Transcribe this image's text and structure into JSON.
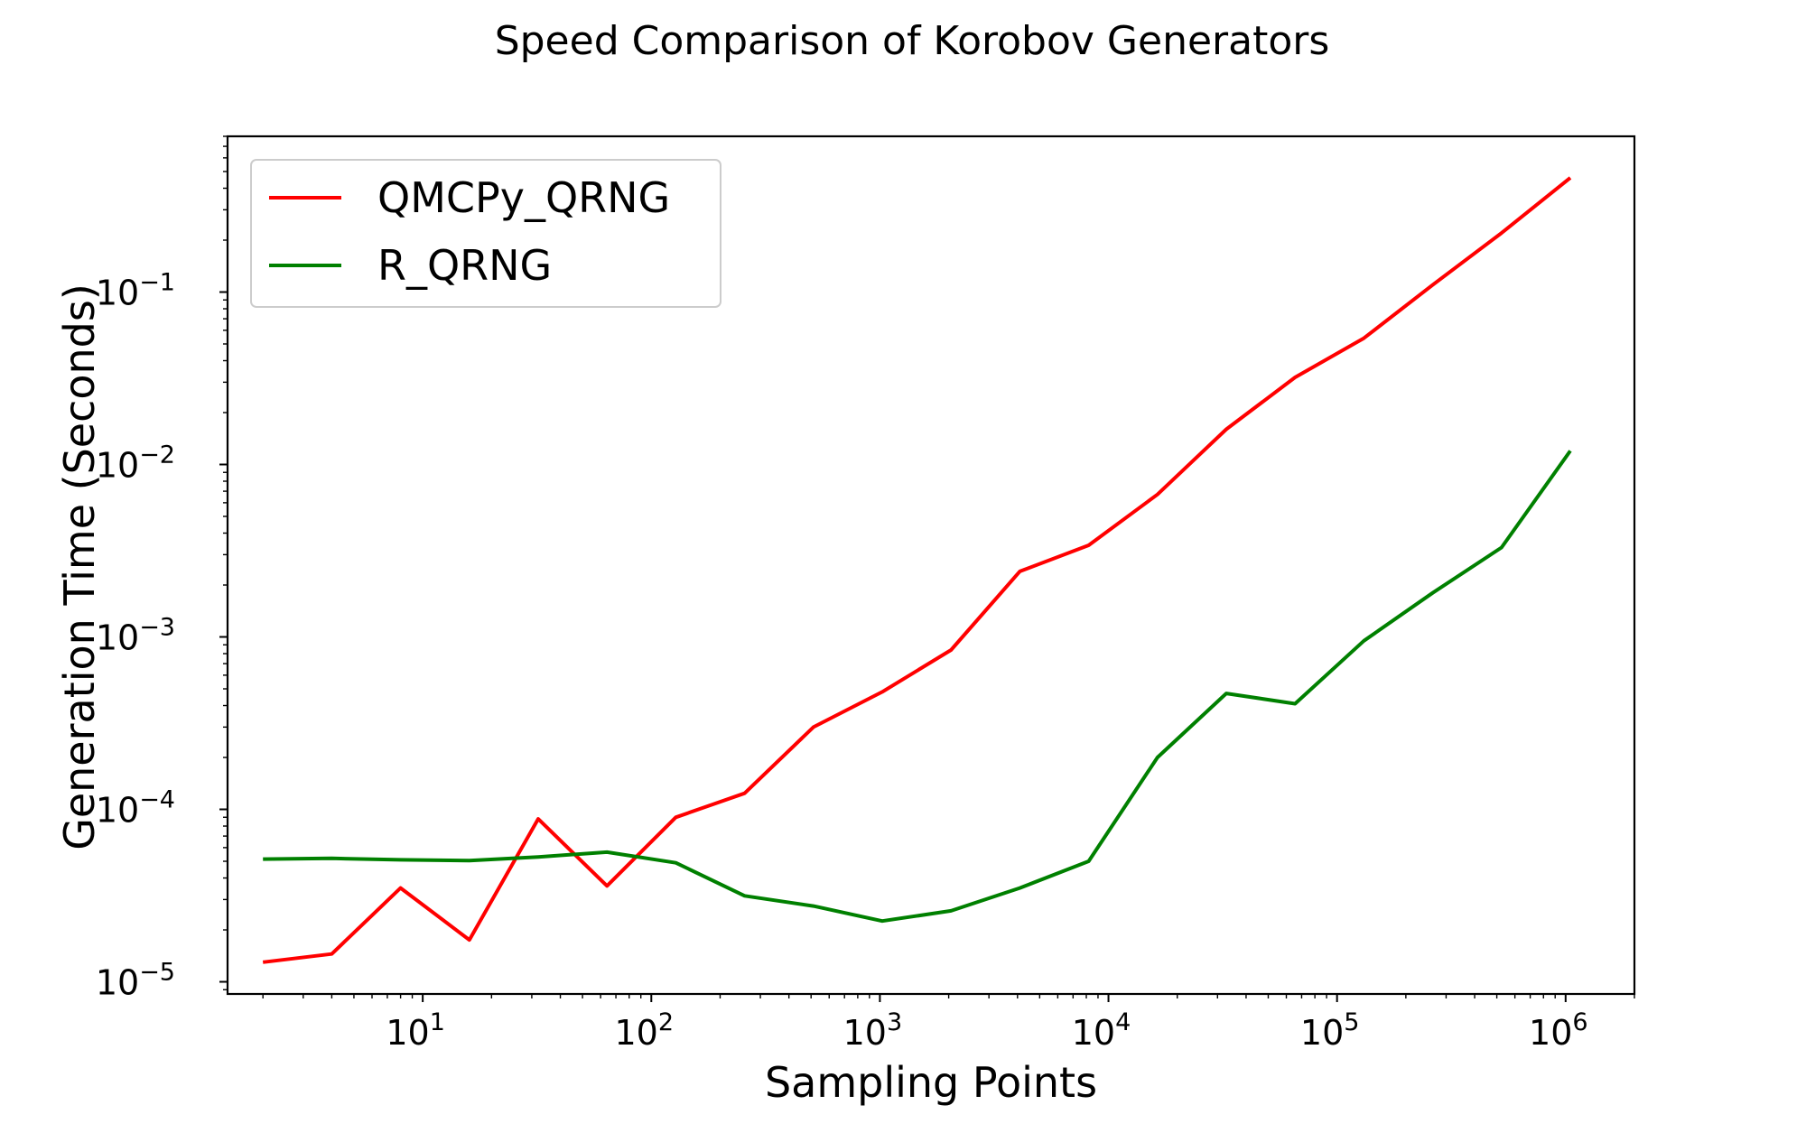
{
  "chart_data": {
    "type": "line",
    "title": "Speed Comparison of Korobov Generators",
    "xlabel": "Sampling Points",
    "ylabel": "Generation Time (Seconds)",
    "xscale": "log",
    "yscale": "log",
    "xlim": [
      1.4,
      2000000
    ],
    "ylim": [
      8.5e-06,
      0.8
    ],
    "grid": false,
    "legend_position": "upper-left",
    "xticks": [
      {
        "value": 10,
        "base": "10",
        "exp": "1"
      },
      {
        "value": 100,
        "base": "10",
        "exp": "2"
      },
      {
        "value": 1000,
        "base": "10",
        "exp": "3"
      },
      {
        "value": 10000,
        "base": "10",
        "exp": "4"
      },
      {
        "value": 100000,
        "base": "10",
        "exp": "5"
      },
      {
        "value": 1000000,
        "base": "10",
        "exp": "6"
      }
    ],
    "yticks": [
      {
        "value": 1e-05,
        "base": "10",
        "exp": "−5"
      },
      {
        "value": 0.0001,
        "base": "10",
        "exp": "−4"
      },
      {
        "value": 0.001,
        "base": "10",
        "exp": "−3"
      },
      {
        "value": 0.01,
        "base": "10",
        "exp": "−2"
      },
      {
        "value": 0.1,
        "base": "10",
        "exp": "−1"
      }
    ],
    "x": [
      2,
      4,
      8,
      16,
      32,
      64,
      128,
      256,
      512,
      1024,
      2048,
      4096,
      8192,
      16384,
      32768,
      65536,
      131072,
      262144,
      524288,
      1048576
    ],
    "series": [
      {
        "name": "QMCPy_QRNG",
        "color": "#ff0000",
        "values": [
          1.3e-05,
          1.45e-05,
          3.5e-05,
          1.75e-05,
          8.8e-05,
          3.6e-05,
          9e-05,
          0.000124,
          0.0003,
          0.00048,
          0.00084,
          0.0024,
          0.0034,
          0.0067,
          0.016,
          0.032,
          0.054,
          0.11,
          0.22,
          0.46
        ]
      },
      {
        "name": "R_QRNG",
        "color": "#008000",
        "values": [
          5.15e-05,
          5.2e-05,
          5.1e-05,
          5.05e-05,
          5.3e-05,
          5.65e-05,
          4.9e-05,
          3.15e-05,
          2.75e-05,
          2.25e-05,
          2.58e-05,
          3.5e-05,
          5e-05,
          0.0002,
          0.00047,
          0.00041,
          0.00095,
          0.0018,
          0.0033,
          0.012
        ]
      }
    ]
  }
}
